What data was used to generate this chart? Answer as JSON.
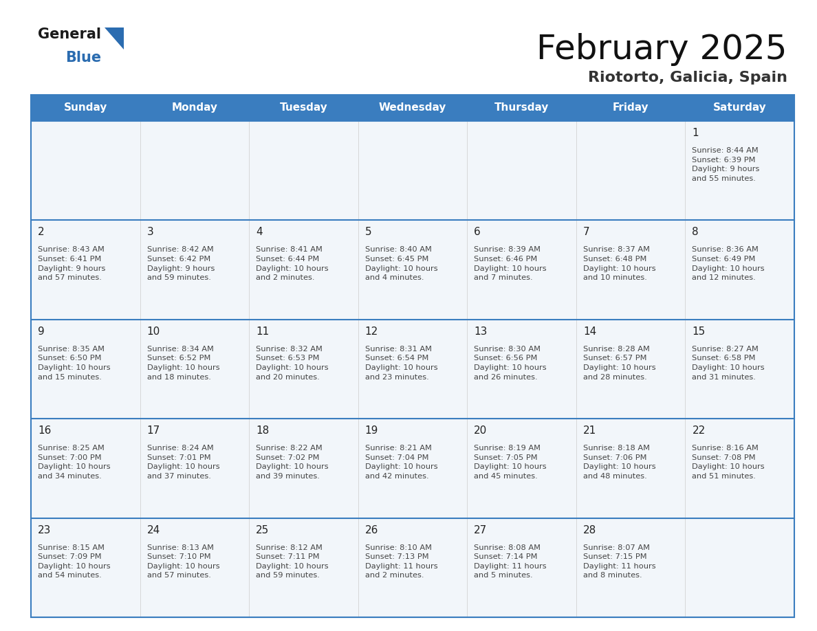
{
  "title": "February 2025",
  "subtitle": "Riotorto, Galicia, Spain",
  "days_of_week": [
    "Sunday",
    "Monday",
    "Tuesday",
    "Wednesday",
    "Thursday",
    "Friday",
    "Saturday"
  ],
  "header_bg": "#3a7dbf",
  "header_text": "#ffffff",
  "cell_bg": "#f2f6fa",
  "divider_color": "#3a7dbf",
  "text_color": "#444444",
  "day_num_color": "#222222",
  "calendar_data": [
    [
      null,
      null,
      null,
      null,
      null,
      null,
      {
        "day": "1",
        "sunrise": "8:44 AM",
        "sunset": "6:39 PM",
        "daylight": "9 hours\nand 55 minutes."
      }
    ],
    [
      {
        "day": "2",
        "sunrise": "8:43 AM",
        "sunset": "6:41 PM",
        "daylight": "9 hours\nand 57 minutes."
      },
      {
        "day": "3",
        "sunrise": "8:42 AM",
        "sunset": "6:42 PM",
        "daylight": "9 hours\nand 59 minutes."
      },
      {
        "day": "4",
        "sunrise": "8:41 AM",
        "sunset": "6:44 PM",
        "daylight": "10 hours\nand 2 minutes."
      },
      {
        "day": "5",
        "sunrise": "8:40 AM",
        "sunset": "6:45 PM",
        "daylight": "10 hours\nand 4 minutes."
      },
      {
        "day": "6",
        "sunrise": "8:39 AM",
        "sunset": "6:46 PM",
        "daylight": "10 hours\nand 7 minutes."
      },
      {
        "day": "7",
        "sunrise": "8:37 AM",
        "sunset": "6:48 PM",
        "daylight": "10 hours\nand 10 minutes."
      },
      {
        "day": "8",
        "sunrise": "8:36 AM",
        "sunset": "6:49 PM",
        "daylight": "10 hours\nand 12 minutes."
      }
    ],
    [
      {
        "day": "9",
        "sunrise": "8:35 AM",
        "sunset": "6:50 PM",
        "daylight": "10 hours\nand 15 minutes."
      },
      {
        "day": "10",
        "sunrise": "8:34 AM",
        "sunset": "6:52 PM",
        "daylight": "10 hours\nand 18 minutes."
      },
      {
        "day": "11",
        "sunrise": "8:32 AM",
        "sunset": "6:53 PM",
        "daylight": "10 hours\nand 20 minutes."
      },
      {
        "day": "12",
        "sunrise": "8:31 AM",
        "sunset": "6:54 PM",
        "daylight": "10 hours\nand 23 minutes."
      },
      {
        "day": "13",
        "sunrise": "8:30 AM",
        "sunset": "6:56 PM",
        "daylight": "10 hours\nand 26 minutes."
      },
      {
        "day": "14",
        "sunrise": "8:28 AM",
        "sunset": "6:57 PM",
        "daylight": "10 hours\nand 28 minutes."
      },
      {
        "day": "15",
        "sunrise": "8:27 AM",
        "sunset": "6:58 PM",
        "daylight": "10 hours\nand 31 minutes."
      }
    ],
    [
      {
        "day": "16",
        "sunrise": "8:25 AM",
        "sunset": "7:00 PM",
        "daylight": "10 hours\nand 34 minutes."
      },
      {
        "day": "17",
        "sunrise": "8:24 AM",
        "sunset": "7:01 PM",
        "daylight": "10 hours\nand 37 minutes."
      },
      {
        "day": "18",
        "sunrise": "8:22 AM",
        "sunset": "7:02 PM",
        "daylight": "10 hours\nand 39 minutes."
      },
      {
        "day": "19",
        "sunrise": "8:21 AM",
        "sunset": "7:04 PM",
        "daylight": "10 hours\nand 42 minutes."
      },
      {
        "day": "20",
        "sunrise": "8:19 AM",
        "sunset": "7:05 PM",
        "daylight": "10 hours\nand 45 minutes."
      },
      {
        "day": "21",
        "sunrise": "8:18 AM",
        "sunset": "7:06 PM",
        "daylight": "10 hours\nand 48 minutes."
      },
      {
        "day": "22",
        "sunrise": "8:16 AM",
        "sunset": "7:08 PM",
        "daylight": "10 hours\nand 51 minutes."
      }
    ],
    [
      {
        "day": "23",
        "sunrise": "8:15 AM",
        "sunset": "7:09 PM",
        "daylight": "10 hours\nand 54 minutes."
      },
      {
        "day": "24",
        "sunrise": "8:13 AM",
        "sunset": "7:10 PM",
        "daylight": "10 hours\nand 57 minutes."
      },
      {
        "day": "25",
        "sunrise": "8:12 AM",
        "sunset": "7:11 PM",
        "daylight": "10 hours\nand 59 minutes."
      },
      {
        "day": "26",
        "sunrise": "8:10 AM",
        "sunset": "7:13 PM",
        "daylight": "11 hours\nand 2 minutes."
      },
      {
        "day": "27",
        "sunrise": "8:08 AM",
        "sunset": "7:14 PM",
        "daylight": "11 hours\nand 5 minutes."
      },
      {
        "day": "28",
        "sunrise": "8:07 AM",
        "sunset": "7:15 PM",
        "daylight": "11 hours\nand 8 minutes."
      },
      null
    ]
  ]
}
